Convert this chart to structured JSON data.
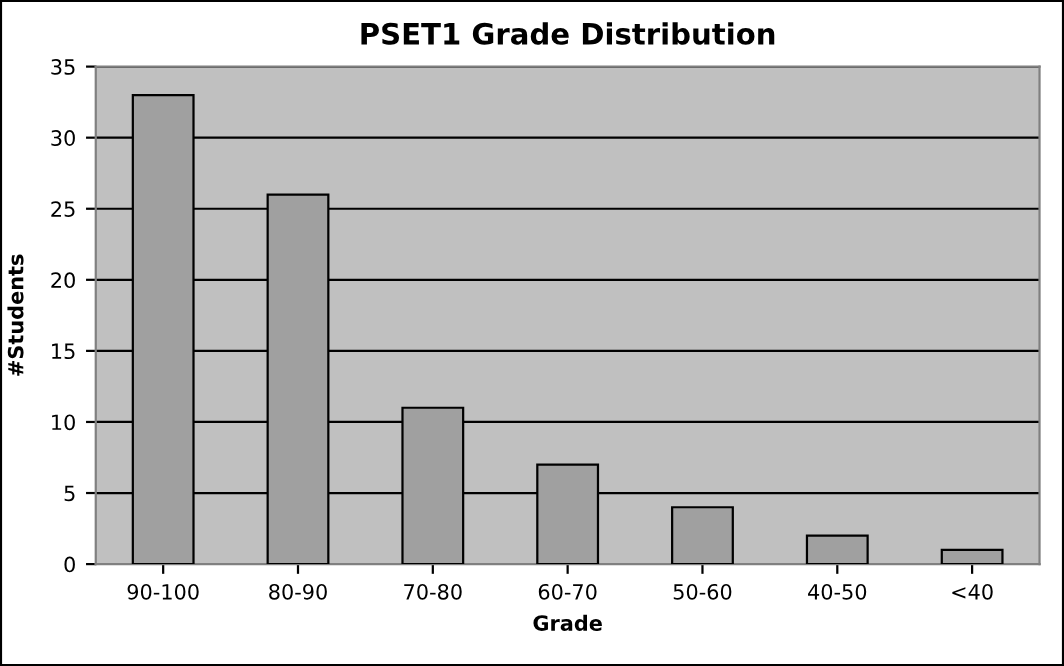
{
  "chart_data": {
    "type": "bar",
    "title": "PSET1 Grade Distribution",
    "xlabel": "Grade",
    "ylabel": "#Students",
    "categories": [
      "90-100",
      "80-90",
      "70-80",
      "60-70",
      "50-60",
      "40-50",
      "<40"
    ],
    "values": [
      33,
      26,
      11,
      7,
      4,
      2,
      1
    ],
    "color": "#a0a0a0",
    "ylim": [
      0,
      35
    ],
    "yticks": [
      0,
      5,
      10,
      15,
      20,
      25,
      30,
      35
    ],
    "grid": "y"
  }
}
